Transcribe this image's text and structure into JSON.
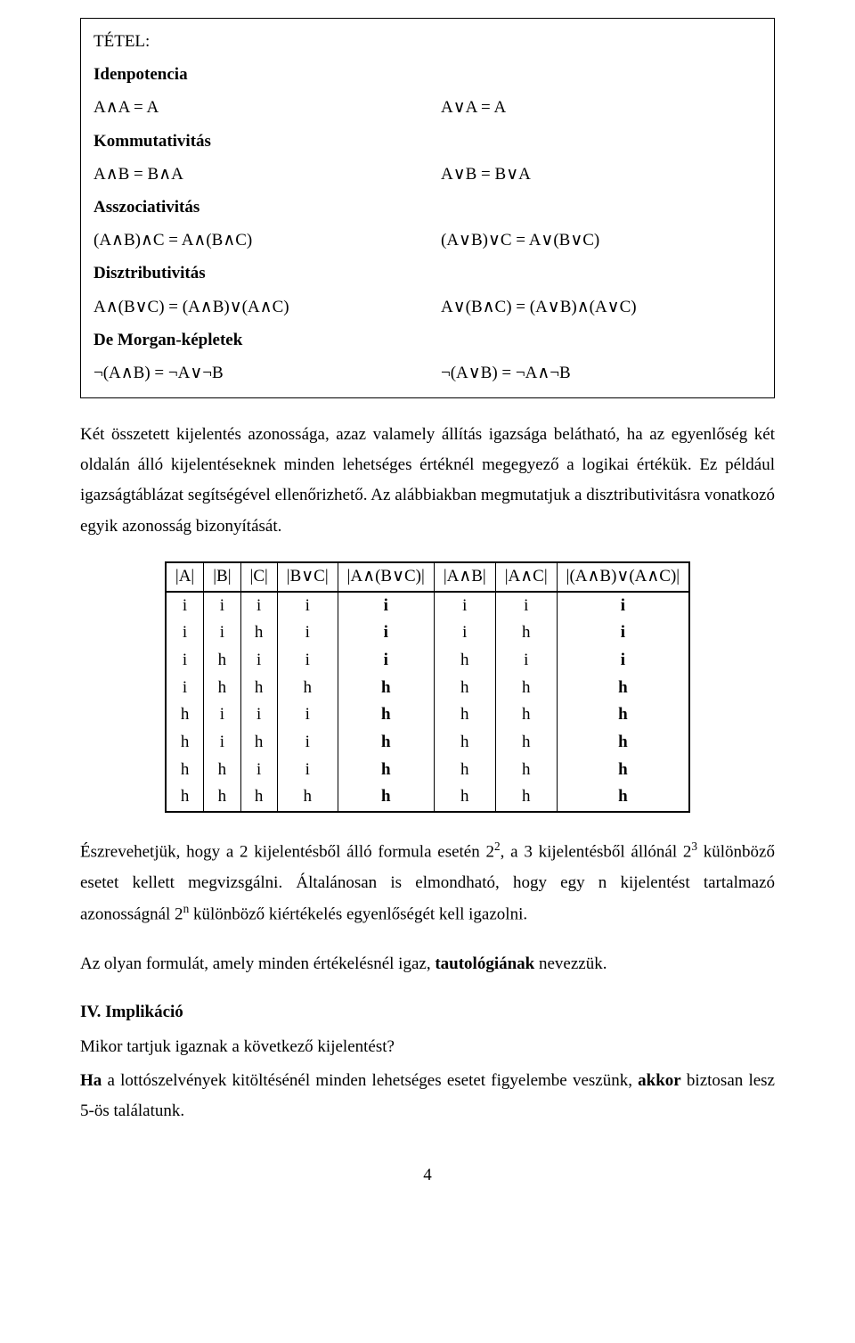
{
  "theorem": {
    "title": "TÉTEL:",
    "idempotence_h": "Idenpotencia",
    "idem_l": "A∧A = A",
    "idem_r": "A∨A = A",
    "commut_h": "Kommutativitás",
    "comm_l": "A∧B = B∧A",
    "comm_r": "A∨B = B∨A",
    "assoc_h": "Asszociativitás",
    "assoc_l": "(A∧B)∧C = A∧(B∧C)",
    "assoc_r": "(A∨B)∨C = A∨(B∨C)",
    "distr_h": "Disztributivitás",
    "distr_l": "A∧(B∨C) = (A∧B)∨(A∧C)",
    "distr_r": "A∨(B∧C) = (A∨B)∧(A∨C)",
    "demorgan_h": "De Morgan-képletek",
    "dem_l": "¬(A∧B) = ¬A∨¬B",
    "dem_r": "¬(A∨B) = ¬A∧¬B"
  },
  "para1": "Két összetett kijelentés azonossága, azaz valamely állítás igazsága belátható, ha az egyenlőség két oldalán álló kijelentéseknek minden lehetséges értéknél megegyező a logikai értékük. Ez például igazságtáblázat segítségével ellenőrizhető. Az alábbiakban megmutatjuk a disztributivitásra vonatkozó egyik azonosság bizonyítását.",
  "truth_table": {
    "headers": [
      "|A|",
      "|B|",
      "|C|",
      "|B∨C|",
      "|A∧(B∨C)|",
      "|A∧B|",
      "|A∧C|",
      "|(A∧B)∨(A∧C)|"
    ],
    "bold_cols": [
      4,
      7
    ],
    "rows": [
      [
        "i",
        "i",
        "i",
        "i",
        "i",
        "i",
        "i",
        "i"
      ],
      [
        "i",
        "i",
        "h",
        "i",
        "i",
        "i",
        "h",
        "i"
      ],
      [
        "i",
        "h",
        "i",
        "i",
        "i",
        "h",
        "i",
        "i"
      ],
      [
        "i",
        "h",
        "h",
        "h",
        "h",
        "h",
        "h",
        "h"
      ],
      [
        "h",
        "i",
        "i",
        "i",
        "h",
        "h",
        "h",
        "h"
      ],
      [
        "h",
        "i",
        "h",
        "i",
        "h",
        "h",
        "h",
        "h"
      ],
      [
        "h",
        "h",
        "i",
        "i",
        "h",
        "h",
        "h",
        "h"
      ],
      [
        "h",
        "h",
        "h",
        "h",
        "h",
        "h",
        "h",
        "h"
      ]
    ]
  },
  "para2_a": "Észrevehetjük, hogy a 2 kijelentésből álló formula esetén 2",
  "para2_b": ", a 3 kijelentésből állónál 2",
  "para2_c": " különböző esetet kellett megvizsgálni. Általánosan is elmondható, hogy egy n kijelentést tartalmazó azonosságnál 2",
  "para2_d": " különböző kiértékelés egyenlőségét kell igazolni.",
  "exp2": "2",
  "exp3": "3",
  "expn": "n",
  "para3_a": "Az olyan formulát, amely minden értékelésnél igaz, ",
  "para3_b": "tautológiának",
  "para3_c": " nevezzük.",
  "section4": "IV. Implikáció",
  "q": "Mikor tartjuk igaznak a következő kijelentést?",
  "ha": "Ha",
  "mid_text": " a lottószelvények kitöltésénél minden lehetséges esetet figyelembe veszünk, ",
  "akkor": "akkor",
  "end_text": " biztosan lesz 5-ös találatunk.",
  "pagenum": "4"
}
